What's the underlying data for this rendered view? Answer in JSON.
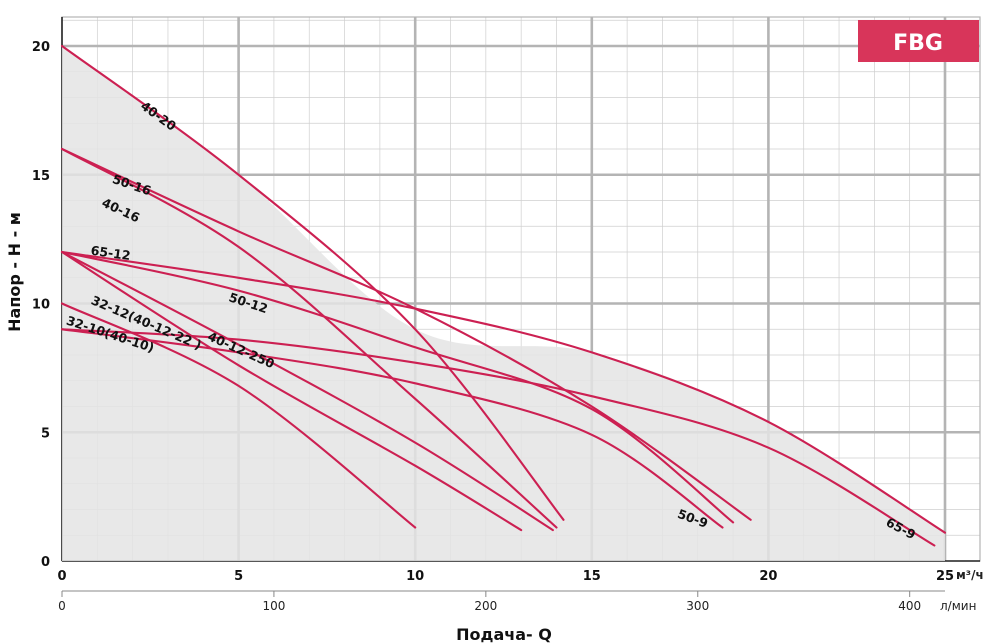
{
  "chart_data": {
    "type": "line",
    "badge": {
      "text": "FBG",
      "color": "#d8355a"
    },
    "curve_color": "#cc2052",
    "xlabel": "Подача- Q",
    "ylabel": "Напор - H - м",
    "x_unit_primary": "м³/ч",
    "x_unit_secondary": "л/мин",
    "xlim": [
      0,
      25
    ],
    "ylim": [
      0,
      20
    ],
    "x_ticks": [
      "0",
      "5",
      "10",
      "15",
      "20",
      "25"
    ],
    "x_ticks_secondary": [
      "0",
      "100",
      "200",
      "300",
      "400"
    ],
    "y_ticks": [
      "0",
      "5",
      "10",
      "15",
      "20"
    ],
    "grid": true,
    "series": [
      {
        "name": "40-20",
        "points": [
          [
            0,
            20
          ],
          [
            5,
            15
          ],
          [
            10,
            9
          ],
          [
            14.2,
            1.6
          ]
        ],
        "label_at": [
          2.2,
          17.6
        ],
        "label_angle": 36
      },
      {
        "name": "50-16",
        "points": [
          [
            0,
            16
          ],
          [
            5,
            12.8
          ],
          [
            10,
            9.8
          ],
          [
            15,
            6
          ],
          [
            19.5,
            1.6
          ]
        ],
        "label_at": [
          1.4,
          14.7
        ],
        "label_angle": 19
      },
      {
        "name": "40-16",
        "points": [
          [
            0,
            16
          ],
          [
            5,
            12.2
          ],
          [
            10,
            6.3
          ],
          [
            14,
            1.3
          ]
        ],
        "label_at": [
          1.1,
          13.8
        ],
        "label_angle": 25
      },
      {
        "name": "65-12",
        "points": [
          [
            0,
            12
          ],
          [
            5,
            11
          ],
          [
            10,
            9.8
          ],
          [
            15,
            8.1
          ],
          [
            20,
            5.4
          ],
          [
            25,
            1.1
          ]
        ],
        "label_at": [
          0.8,
          11.9
        ],
        "label_angle": 8
      },
      {
        "name": "50-12",
        "points": [
          [
            0,
            12
          ],
          [
            5,
            10.5
          ],
          [
            10,
            8.3
          ],
          [
            15,
            5.9
          ],
          [
            19,
            1.5
          ]
        ],
        "label_at": [
          4.7,
          10.1
        ],
        "label_angle": 18
      },
      {
        "name": "40-12-250",
        "points": [
          [
            0,
            12
          ],
          [
            5,
            8.4
          ],
          [
            10,
            4.6
          ],
          [
            13.9,
            1.2
          ]
        ],
        "label_at": [
          4.1,
          8.6
        ],
        "label_angle": 24
      },
      {
        "name": "32-12(40-12-22 )",
        "points": [
          [
            0,
            12
          ],
          [
            5,
            7.6
          ],
          [
            10,
            3.7
          ],
          [
            13,
            1.2
          ]
        ],
        "label_at": [
          0.8,
          10.0
        ],
        "label_angle": 23
      },
      {
        "name": "32-10(40-10)",
        "points": [
          [
            0,
            10
          ],
          [
            5,
            6.8
          ],
          [
            10,
            1.3
          ]
        ],
        "label_at": [
          0.1,
          9.2
        ],
        "label_angle": 18
      },
      {
        "name": "50-9",
        "points": [
          [
            0,
            9
          ],
          [
            5,
            8.1
          ],
          [
            10,
            6.9
          ],
          [
            15,
            4.9
          ],
          [
            18.7,
            1.3
          ]
        ],
        "label_at": [
          17.4,
          1.7
        ],
        "label_angle": 20
      },
      {
        "name": "65-9",
        "points": [
          [
            0,
            9
          ],
          [
            5,
            8.6
          ],
          [
            10,
            7.7
          ],
          [
            15,
            6.4
          ],
          [
            20,
            4.4
          ],
          [
            24.7,
            0.6
          ]
        ],
        "label_at": [
          23.3,
          1.4
        ],
        "label_angle": 28
      }
    ]
  }
}
